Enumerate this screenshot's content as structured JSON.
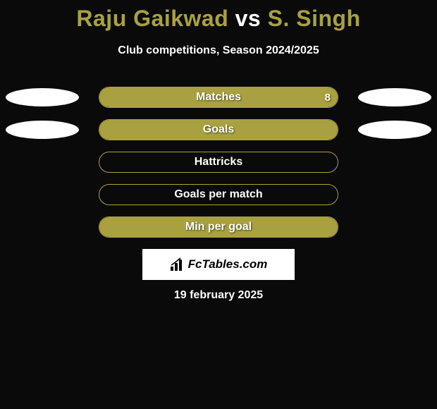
{
  "background_color": "#0a0a0a",
  "title": {
    "player1": "Raju Gaikwad",
    "vs": " vs ",
    "player2": "S. Singh",
    "player1_color": "#a9a140",
    "vs_color": "#ffffff",
    "player2_color": "#a9a140",
    "fontsize": 32
  },
  "subtitle": {
    "text": "Club competitions, Season 2024/2025",
    "color": "#ffffff",
    "fontsize": 16
  },
  "player1_ellipse_color": "#ffffff",
  "player2_ellipse_color": "#ffffff",
  "bar_border_color": "#a9a140",
  "bar_fill_color": "#a9a140",
  "bar_label_fontsize": 16,
  "rows": [
    {
      "label": "Matches",
      "left_value": "",
      "right_value": "8",
      "show_left_ellipse": true,
      "show_right_ellipse": true,
      "fill_side": "full",
      "fill_pct": 100
    },
    {
      "label": "Goals",
      "left_value": "",
      "right_value": "",
      "show_left_ellipse": true,
      "show_right_ellipse": true,
      "fill_side": "full",
      "fill_pct": 100
    },
    {
      "label": "Hattricks",
      "left_value": "",
      "right_value": "",
      "show_left_ellipse": false,
      "show_right_ellipse": false,
      "fill_side": "none",
      "fill_pct": 0
    },
    {
      "label": "Goals per match",
      "left_value": "",
      "right_value": "",
      "show_left_ellipse": false,
      "show_right_ellipse": false,
      "fill_side": "none",
      "fill_pct": 0
    },
    {
      "label": "Min per goal",
      "left_value": "",
      "right_value": "",
      "show_left_ellipse": false,
      "show_right_ellipse": false,
      "fill_side": "full",
      "fill_pct": 100
    }
  ],
  "logo": {
    "text": "FcTables.com",
    "background": "#ffffff",
    "text_color": "#000000"
  },
  "date": {
    "text": "19 february 2025",
    "color": "#ffffff",
    "fontsize": 16
  }
}
